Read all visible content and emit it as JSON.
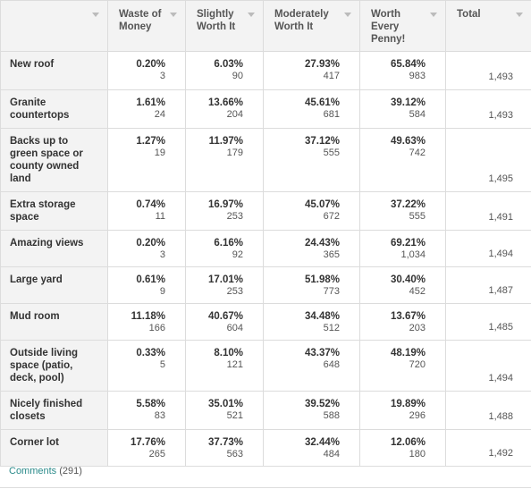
{
  "table": {
    "header": [
      "Waste of Money",
      "Slightly Worth It",
      "Moderately Worth It",
      "Worth Every Penny!",
      "Total"
    ],
    "rows": [
      {
        "label": "New roof",
        "cells": [
          [
            "0.20%",
            "3"
          ],
          [
            "6.03%",
            "90"
          ],
          [
            "27.93%",
            "417"
          ],
          [
            "65.84%",
            "983"
          ]
        ],
        "total": "1,493"
      },
      {
        "label": "Granite countertops",
        "cells": [
          [
            "1.61%",
            "24"
          ],
          [
            "13.66%",
            "204"
          ],
          [
            "45.61%",
            "681"
          ],
          [
            "39.12%",
            "584"
          ]
        ],
        "total": "1,493"
      },
      {
        "label": "Backs up to green space or county owned land",
        "cells": [
          [
            "1.27%",
            "19"
          ],
          [
            "11.97%",
            "179"
          ],
          [
            "37.12%",
            "555"
          ],
          [
            "49.63%",
            "742"
          ]
        ],
        "total": "1,495"
      },
      {
        "label": "Extra storage space",
        "cells": [
          [
            "0.74%",
            "11"
          ],
          [
            "16.97%",
            "253"
          ],
          [
            "45.07%",
            "672"
          ],
          [
            "37.22%",
            "555"
          ]
        ],
        "total": "1,491"
      },
      {
        "label": "Amazing views",
        "cells": [
          [
            "0.20%",
            "3"
          ],
          [
            "6.16%",
            "92"
          ],
          [
            "24.43%",
            "365"
          ],
          [
            "69.21%",
            "1,034"
          ]
        ],
        "total": "1,494"
      },
      {
        "label": "Large yard",
        "cells": [
          [
            "0.61%",
            "9"
          ],
          [
            "17.01%",
            "253"
          ],
          [
            "51.98%",
            "773"
          ],
          [
            "30.40%",
            "452"
          ]
        ],
        "total": "1,487"
      },
      {
        "label": "Mud room",
        "cells": [
          [
            "11.18%",
            "166"
          ],
          [
            "40.67%",
            "604"
          ],
          [
            "34.48%",
            "512"
          ],
          [
            "13.67%",
            "203"
          ]
        ],
        "total": "1,485"
      },
      {
        "label": "Outside living space (patio, deck, pool)",
        "cells": [
          [
            "0.33%",
            "5"
          ],
          [
            "8.10%",
            "121"
          ],
          [
            "43.37%",
            "648"
          ],
          [
            "48.19%",
            "720"
          ]
        ],
        "total": "1,494"
      },
      {
        "label": "Nicely finished closets",
        "cells": [
          [
            "5.58%",
            "83"
          ],
          [
            "35.01%",
            "521"
          ],
          [
            "39.52%",
            "588"
          ],
          [
            "19.89%",
            "296"
          ]
        ],
        "total": "1,488"
      },
      {
        "label": "Corner lot",
        "cells": [
          [
            "17.76%",
            "265"
          ],
          [
            "37.73%",
            "563"
          ],
          [
            "32.44%",
            "484"
          ],
          [
            "12.06%",
            "180"
          ]
        ],
        "total": "1,492"
      }
    ]
  },
  "comments": {
    "link": "Comments",
    "count": "(291)"
  }
}
